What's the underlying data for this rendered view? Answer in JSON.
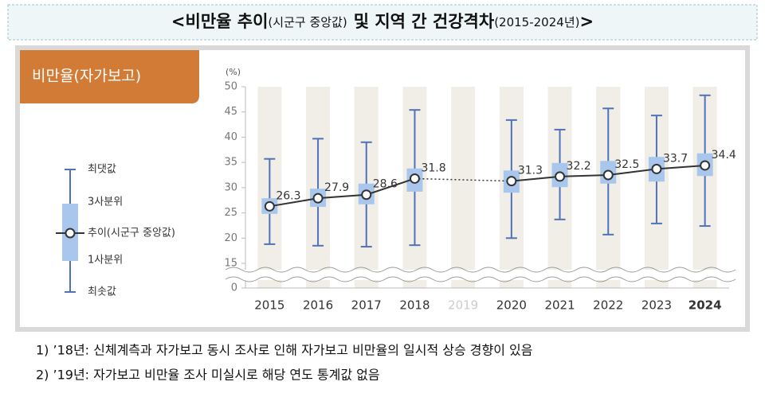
{
  "title_parts": [
    "<비만율 추이",
    "(시군구 중앙값)",
    "및 지역 간 건강격차",
    "(2015-2024년)",
    ">"
  ],
  "chart_data": {
    "type": "boxplot",
    "panel_label": "비만율(자가보고)",
    "unit": "(%)",
    "categories": [
      "2015",
      "2016",
      "2017",
      "2018",
      "2019",
      "2020",
      "2021",
      "2022",
      "2023",
      "2024"
    ],
    "median": [
      26.3,
      27.9,
      28.6,
      31.8,
      null,
      31.3,
      32.2,
      32.5,
      33.7,
      34.4
    ],
    "q1": [
      24.8,
      26.2,
      26.7,
      29.2,
      null,
      29.0,
      30.1,
      30.8,
      31.2,
      32.3
    ],
    "q3": [
      27.9,
      29.8,
      30.8,
      33.8,
      null,
      33.4,
      34.9,
      35.3,
      36.1,
      36.8
    ],
    "min": [
      18.8,
      18.5,
      18.3,
      18.6,
      null,
      20.0,
      23.7,
      20.7,
      22.9,
      22.4
    ],
    "max": [
      35.7,
      39.7,
      39.0,
      45.4,
      null,
      43.4,
      41.5,
      45.7,
      44.3,
      48.3
    ],
    "legend_labels": {
      "max": "최댓값",
      "q3": "3사분위",
      "median": "추이(시군구 중앙값)",
      "q1": "1사분위",
      "min": "최솟값"
    },
    "ylim": [
      15,
      50
    ],
    "yticks": [
      0,
      15,
      20,
      25,
      30,
      35,
      40,
      45,
      50
    ],
    "axis_break": true,
    "box_color": "#a9c7ec",
    "whisker_color": "#4f72b8",
    "line_color": "#333333",
    "gap_style": "dotted"
  },
  "notes": [
    "1)  ’18년: 신체계측과 자가보고 동시 조사로 인해 자가보고 비만율의 일시적 상승 경향이 있음",
    "2)  ’19년: 자가보고 비만율 조사 미실시로 해당 연도 통계값 없음"
  ]
}
